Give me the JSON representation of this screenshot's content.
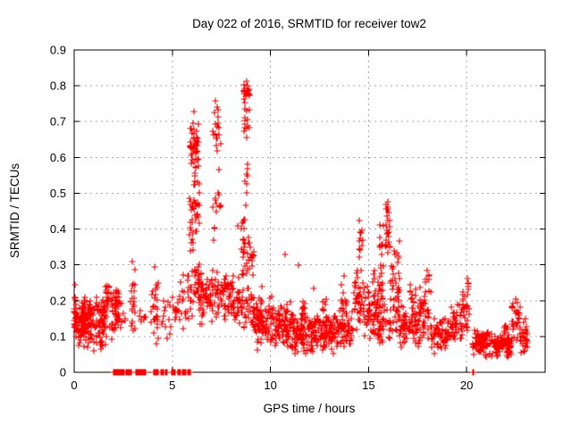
{
  "window": {
    "background": "#ffffff"
  },
  "chart_data": {
    "type": "scatter",
    "title": "Day 022 of 2016, SRMTID for receiver tow2",
    "xlabel": "GPS time / hours",
    "ylabel": "SRMTID / TECUs",
    "xlim": [
      0,
      24
    ],
    "ylim": [
      0,
      0.9
    ],
    "xticks": [
      0,
      5,
      10,
      15,
      20
    ],
    "xtick_labels": [
      "0",
      "5",
      "10",
      "15",
      "20"
    ],
    "yticks": [
      0,
      0.1,
      0.2,
      0.3,
      0.4,
      0.5,
      0.6,
      0.7,
      0.8,
      0.9
    ],
    "ytick_labels": [
      "0",
      "0.1",
      "0.2",
      "0.3",
      "0.4",
      "0.5",
      "0.6",
      "0.7",
      "0.8",
      "0.9"
    ],
    "grid": {
      "shown": true,
      "style": "dashed",
      "color": "#a9a9a9",
      "x_at": [
        5,
        10,
        15,
        20
      ],
      "y_at": [
        0.1,
        0.2,
        0.3,
        0.4,
        0.5,
        0.6,
        0.7,
        0.8
      ]
    },
    "border_color": "#000000",
    "marker": {
      "glyph": "+",
      "color": "#ff0000",
      "size": 7
    },
    "legend": {
      "shown": false
    },
    "bands_format": "[x_start_hours, x_end_hours, y_min_TECU, y_max_TECU, approx_point_count] — approximated dense point-cloud regions read from the plot",
    "bands": [
      [
        0,
        0.15,
        0.07,
        0.24,
        25
      ],
      [
        0.1,
        1.0,
        0.05,
        0.22,
        95
      ],
      [
        0.35,
        0.85,
        0.09,
        0.2,
        45
      ],
      [
        1.0,
        1.65,
        0.04,
        0.22,
        75
      ],
      [
        1.55,
        1.8,
        0.17,
        0.26,
        18
      ],
      [
        1.8,
        2.35,
        0.09,
        0.26,
        45
      ],
      [
        2.05,
        2.3,
        0.17,
        0.24,
        12
      ],
      [
        2.35,
        2.65,
        0.11,
        0.2,
        8
      ],
      [
        2.85,
        3.1,
        0.1,
        0.3,
        20
      ],
      [
        3.3,
        3.7,
        0.1,
        0.2,
        8
      ],
      [
        3.9,
        4.3,
        0.07,
        0.29,
        28
      ],
      [
        4.4,
        5.0,
        0.07,
        0.22,
        14
      ],
      [
        5.05,
        5.45,
        0.1,
        0.27,
        16
      ],
      [
        5.5,
        5.85,
        0.1,
        0.3,
        18
      ],
      [
        5.85,
        6.1,
        0.28,
        0.55,
        20
      ],
      [
        5.9,
        6.35,
        0.55,
        0.72,
        45
      ],
      [
        5.9,
        6.5,
        0.12,
        0.35,
        45
      ],
      [
        6.1,
        6.4,
        0.35,
        0.6,
        25
      ],
      [
        6.4,
        6.95,
        0.13,
        0.28,
        40
      ],
      [
        7.0,
        7.45,
        0.6,
        0.75,
        16
      ],
      [
        7.05,
        7.45,
        0.32,
        0.6,
        14
      ],
      [
        6.9,
        7.6,
        0.13,
        0.3,
        40
      ],
      [
        7.6,
        8.6,
        0.12,
        0.28,
        75
      ],
      [
        8.3,
        8.7,
        0.3,
        0.5,
        10
      ],
      [
        8.65,
        8.95,
        0.76,
        0.81,
        22
      ],
      [
        8.65,
        8.95,
        0.64,
        0.76,
        14
      ],
      [
        8.7,
        8.9,
        0.4,
        0.64,
        8
      ],
      [
        8.6,
        9.15,
        0.25,
        0.4,
        30
      ],
      [
        8.55,
        9.2,
        0.12,
        0.25,
        30
      ],
      [
        9.0,
        9.6,
        0.1,
        0.22,
        45
      ],
      [
        9.3,
        10.3,
        0.05,
        0.18,
        60
      ],
      [
        9.9,
        10.15,
        0.14,
        0.23,
        10
      ],
      [
        10.3,
        11.2,
        0.06,
        0.2,
        90
      ],
      [
        11.2,
        12.2,
        0.04,
        0.16,
        90
      ],
      [
        11.5,
        11.8,
        0.13,
        0.22,
        15
      ],
      [
        12.2,
        13.2,
        0.05,
        0.17,
        90
      ],
      [
        12.6,
        12.9,
        0.14,
        0.21,
        10
      ],
      [
        13.2,
        14.2,
        0.05,
        0.18,
        80
      ],
      [
        13.6,
        13.9,
        0.14,
        0.25,
        12
      ],
      [
        14.2,
        14.75,
        0.1,
        0.3,
        40
      ],
      [
        14.45,
        14.7,
        0.3,
        0.42,
        10
      ],
      [
        14.75,
        15.15,
        0.08,
        0.25,
        30
      ],
      [
        15.2,
        15.7,
        0.1,
        0.3,
        45
      ],
      [
        15.55,
        15.8,
        0.28,
        0.42,
        14
      ],
      [
        15.85,
        16.1,
        0.3,
        0.46,
        18
      ],
      [
        15.88,
        16.05,
        0.43,
        0.48,
        5
      ],
      [
        16.1,
        16.6,
        0.15,
        0.38,
        35
      ],
      [
        15.1,
        16.7,
        0.07,
        0.2,
        60
      ],
      [
        16.6,
        17.6,
        0.06,
        0.2,
        70
      ],
      [
        17.1,
        17.4,
        0.17,
        0.26,
        10
      ],
      [
        17.6,
        18.2,
        0.08,
        0.25,
        45
      ],
      [
        17.9,
        18.1,
        0.23,
        0.29,
        6
      ],
      [
        18.2,
        19.2,
        0.05,
        0.16,
        70
      ],
      [
        19.2,
        19.8,
        0.07,
        0.2,
        40
      ],
      [
        19.8,
        20.15,
        0.1,
        0.25,
        25
      ],
      [
        20.0,
        20.12,
        0.21,
        0.27,
        4
      ],
      [
        20.3,
        21.3,
        0.04,
        0.13,
        85
      ],
      [
        21.3,
        22.3,
        0.04,
        0.11,
        85
      ],
      [
        21.9,
        22.1,
        0.09,
        0.15,
        8
      ],
      [
        22.3,
        22.75,
        0.08,
        0.2,
        35
      ],
      [
        22.75,
        23.1,
        0.05,
        0.13,
        25
      ],
      [
        22.9,
        23.05,
        0.1,
        0.16,
        6
      ]
    ],
    "zero_value_runs_hours": [
      [
        2.0,
        2.55
      ],
      [
        2.62,
        2.92
      ],
      [
        3.16,
        3.42
      ],
      [
        3.46,
        3.64
      ],
      [
        4.06,
        4.28
      ],
      [
        4.42,
        4.56
      ],
      [
        4.64,
        4.72
      ],
      [
        4.98,
        5.14
      ],
      [
        5.3,
        5.4
      ],
      [
        5.52,
        5.58
      ],
      [
        5.66,
        5.7
      ],
      [
        5.8,
        5.84
      ],
      [
        5.88,
        5.92
      ],
      [
        20.3,
        20.36
      ]
    ],
    "notable_points": [
      [
        8.78,
        0.812
      ],
      [
        8.84,
        0.8
      ],
      [
        6.12,
        0.728
      ],
      [
        7.2,
        0.757
      ],
      [
        7.3,
        0.74
      ],
      [
        16.0,
        0.477
      ],
      [
        15.97,
        0.462
      ],
      [
        14.55,
        0.425
      ],
      [
        10.75,
        0.33
      ],
      [
        11.45,
        0.298
      ],
      [
        2.96,
        0.308
      ],
      [
        13.75,
        0.27
      ],
      [
        18.0,
        0.284
      ],
      [
        20.05,
        0.263
      ],
      [
        22.5,
        0.205
      ],
      [
        4.12,
        0.295
      ],
      [
        0.05,
        0.245
      ],
      [
        9.55,
        0.24
      ],
      [
        12.2,
        0.235
      ]
    ]
  }
}
